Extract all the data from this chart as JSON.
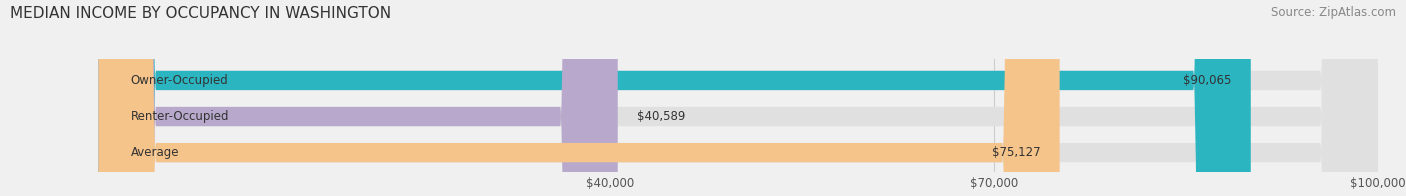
{
  "title": "MEDIAN INCOME BY OCCUPANCY IN WASHINGTON",
  "source": "Source: ZipAtlas.com",
  "categories": [
    "Owner-Occupied",
    "Renter-Occupied",
    "Average"
  ],
  "values": [
    90065,
    40589,
    75127
  ],
  "labels": [
    "$90,065",
    "$40,589",
    "$75,127"
  ],
  "bar_colors": [
    "#2ab5c1",
    "#b8a9cc",
    "#f5c48a"
  ],
  "background_color": "#f0f0f0",
  "bar_bg_color": "#e0e0e0",
  "xlim": [
    0,
    100000
  ],
  "xticks": [
    40000,
    70000,
    100000
  ],
  "xtick_labels": [
    "$40,000",
    "$70,000",
    "$100,000"
  ],
  "title_fontsize": 11,
  "label_fontsize": 8.5,
  "tick_fontsize": 8.5,
  "source_fontsize": 8.5,
  "bar_height": 0.52
}
